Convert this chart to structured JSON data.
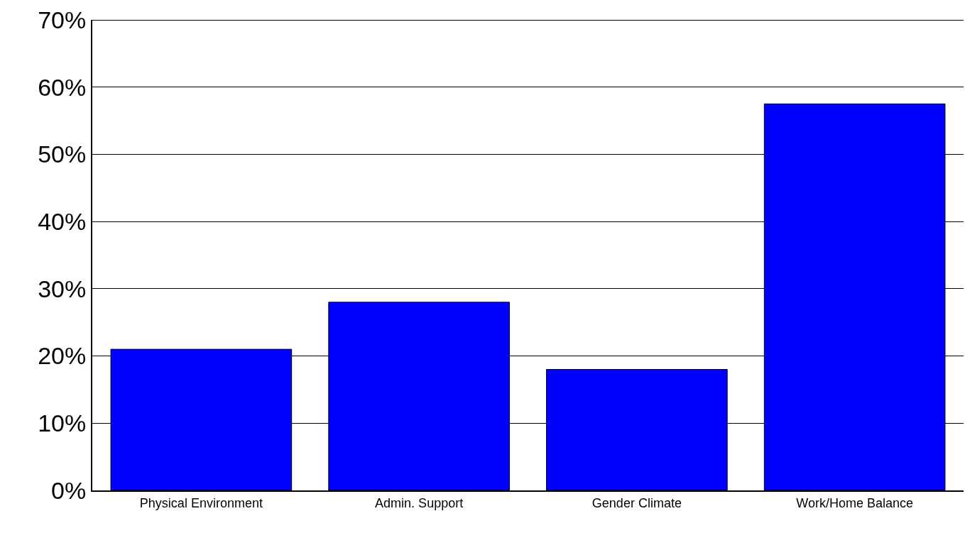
{
  "chart_data": {
    "type": "bar",
    "categories": [
      "Physical Environment",
      "Admin. Support",
      "Gender Climate",
      "Work/Home Balance"
    ],
    "values": [
      21,
      28,
      18,
      57.5
    ],
    "color": "#0000ff",
    "ylim": [
      0,
      70
    ],
    "yticks": [
      {
        "value": 0,
        "label": "0%"
      },
      {
        "value": 10,
        "label": "10%"
      },
      {
        "value": 20,
        "label": "20%"
      },
      {
        "value": 30,
        "label": "30%"
      },
      {
        "value": 40,
        "label": "40%"
      },
      {
        "value": 50,
        "label": "50%"
      },
      {
        "value": 60,
        "label": "60%"
      },
      {
        "value": 70,
        "label": "70%"
      }
    ],
    "grid": "y",
    "legend": false
  }
}
